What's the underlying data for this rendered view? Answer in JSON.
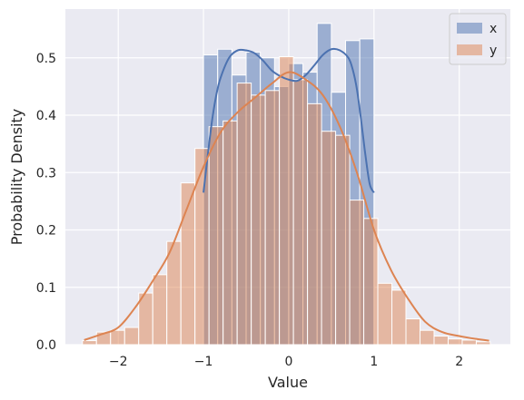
{
  "chart_data": {
    "type": "histogram",
    "xlabel": "Value",
    "ylabel": "Probability Density",
    "xlim": [
      -2.62,
      2.6
    ],
    "ylim": [
      0,
      0.585
    ],
    "xticks": [
      -2,
      -1,
      0,
      1,
      2
    ],
    "xtick_labels": [
      "−2",
      "−1",
      "0",
      "1",
      "2"
    ],
    "yticks": [
      0,
      0.1,
      0.2,
      0.3,
      0.4,
      0.5
    ],
    "ytick_labels": [
      "0.0",
      "0.1",
      "0.2",
      "0.3",
      "0.4",
      "0.5"
    ],
    "grid": true,
    "legend_position": "top-right",
    "colors": {
      "x": "#4c72b0",
      "y": "#dd8452",
      "background": "#eaeaf2",
      "grid": "#ffffff"
    },
    "series": [
      {
        "name": "x",
        "bin_edges": [
          -1.0,
          -0.8333,
          -0.6667,
          -0.5,
          -0.3333,
          -0.1667,
          0.0,
          0.1667,
          0.3333,
          0.5,
          0.6667,
          0.8333,
          1.0
        ],
        "values": [
          0.505,
          0.515,
          0.47,
          0.51,
          0.5,
          0.45,
          0.49,
          0.475,
          0.56,
          0.44,
          0.53,
          0.533
        ],
        "kde_x": [
          -1.0,
          -0.95,
          -0.9,
          -0.85,
          -0.8,
          -0.7,
          -0.6,
          -0.5,
          -0.4,
          -0.3,
          -0.2,
          -0.1,
          0.0,
          0.1,
          0.2,
          0.3,
          0.4,
          0.5,
          0.6,
          0.7,
          0.75,
          0.8,
          0.85,
          0.9,
          0.95,
          1.0
        ],
        "kde_y": [
          0.265,
          0.33,
          0.39,
          0.435,
          0.465,
          0.5,
          0.513,
          0.513,
          0.508,
          0.495,
          0.478,
          0.468,
          0.462,
          0.46,
          0.47,
          0.487,
          0.505,
          0.515,
          0.513,
          0.5,
          0.48,
          0.445,
          0.39,
          0.33,
          0.28,
          0.265
        ]
      },
      {
        "name": "y",
        "bin_edges": [
          -2.42,
          -2.255,
          -2.09,
          -1.925,
          -1.76,
          -1.595,
          -1.43,
          -1.265,
          -1.1,
          -0.935,
          -0.77,
          -0.605,
          -0.44,
          -0.275,
          -0.11,
          0.055,
          0.22,
          0.385,
          0.55,
          0.715,
          0.88,
          1.045,
          1.21,
          1.375,
          1.54,
          1.705,
          1.87,
          2.035,
          2.2,
          2.365
        ],
        "values": [
          0.007,
          0.022,
          0.025,
          0.03,
          0.09,
          0.122,
          0.18,
          0.282,
          0.342,
          0.38,
          0.39,
          0.456,
          0.435,
          0.443,
          0.502,
          0.462,
          0.42,
          0.372,
          0.365,
          0.252,
          0.22,
          0.107,
          0.095,
          0.045,
          0.025,
          0.015,
          0.01,
          0.008,
          0.005
        ],
        "kde_x": [
          -2.4,
          -2.2,
          -2.0,
          -1.8,
          -1.6,
          -1.4,
          -1.2,
          -1.0,
          -0.8,
          -0.6,
          -0.4,
          -0.2,
          0.0,
          0.2,
          0.4,
          0.6,
          0.8,
          1.0,
          1.2,
          1.4,
          1.6,
          1.8,
          2.0,
          2.2,
          2.35
        ],
        "kde_y": [
          0.008,
          0.018,
          0.03,
          0.065,
          0.11,
          0.16,
          0.235,
          0.31,
          0.37,
          0.405,
          0.43,
          0.455,
          0.475,
          0.462,
          0.435,
          0.38,
          0.3,
          0.2,
          0.13,
          0.08,
          0.04,
          0.022,
          0.015,
          0.01,
          0.007
        ]
      }
    ]
  }
}
